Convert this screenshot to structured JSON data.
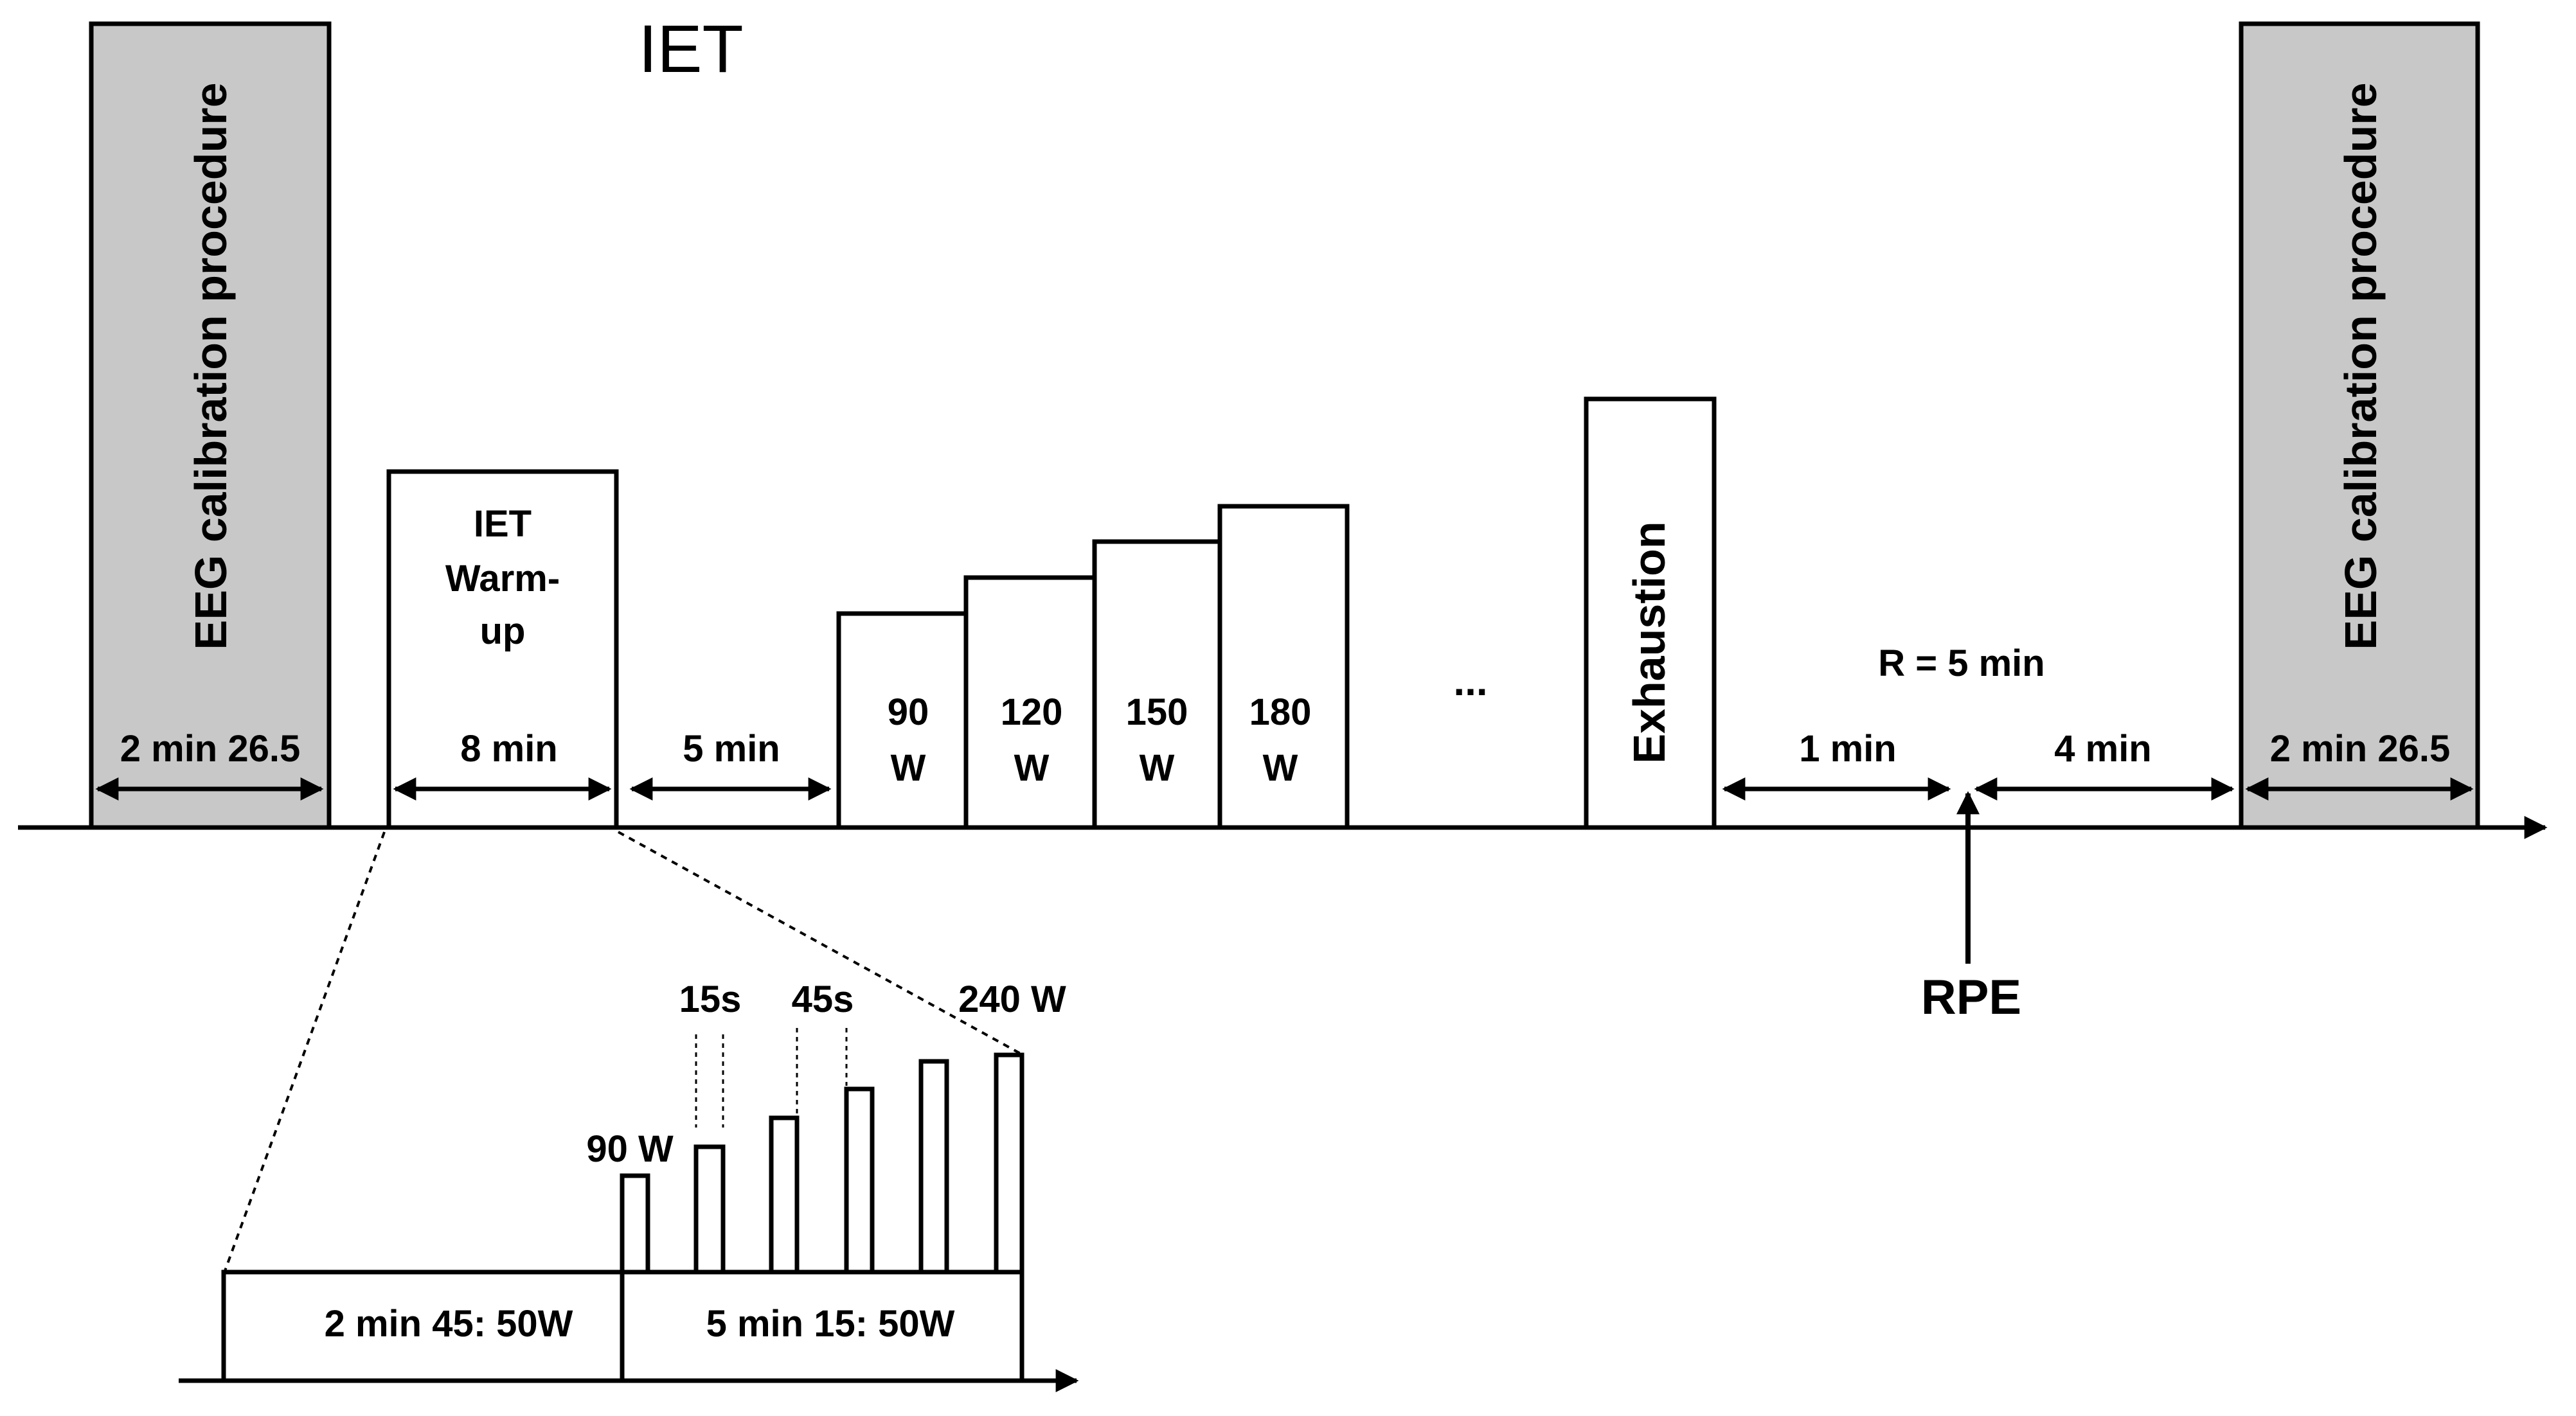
{
  "title": "IET",
  "calibration": {
    "left_label": "EEG calibration procedure",
    "left_duration": "2 min 26.5",
    "right_label": "EEG calibration procedure",
    "right_duration": "2 min 26.5"
  },
  "warmup": {
    "line1": "IET",
    "line2": "Warm-",
    "line3": "up",
    "duration": "8 min"
  },
  "rest_interval": "5 min",
  "steps": [
    {
      "value": "90",
      "unit": "W"
    },
    {
      "value": "120",
      "unit": "W"
    },
    {
      "value": "150",
      "unit": "W"
    },
    {
      "value": "180",
      "unit": "W"
    }
  ],
  "ellipsis": "...",
  "exhaustion": "Exhaustion",
  "recovery": {
    "label": "R = 5 min",
    "first": "1 min",
    "second": "4 min"
  },
  "rpe": "RPE",
  "detail": {
    "box1": "2 min 45: 50W",
    "box2": "5 min 15: 50W",
    "label_90w": "90 W",
    "label_15s": "15s",
    "label_45s": "45s",
    "label_240w": "240 W"
  }
}
